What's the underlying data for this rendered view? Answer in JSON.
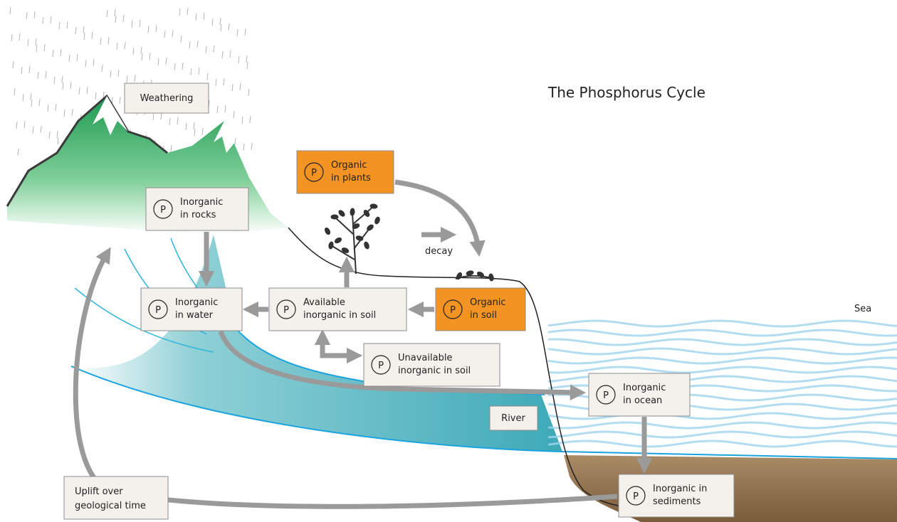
{
  "title": "The Phosphorus Cycle",
  "labels": {
    "weathering": "Weathering",
    "decay": "decay",
    "river": "River",
    "sea": "Sea",
    "uplift": [
      "Uplift over",
      "geological time"
    ]
  },
  "nodes": [
    {
      "symbol": "P",
      "lines": [
        "Inorganic",
        "in rocks"
      ]
    },
    {
      "symbol": "P",
      "lines": [
        "Organic",
        "in plants"
      ]
    },
    {
      "symbol": "P",
      "lines": [
        "Inorganic",
        "in water"
      ]
    },
    {
      "symbol": "P",
      "lines": [
        "Available",
        "inorganic in soil"
      ]
    },
    {
      "symbol": "P",
      "lines": [
        "Organic",
        "in soil"
      ]
    },
    {
      "symbol": "P",
      "lines": [
        "Unavailable",
        "inorganic in soil"
      ]
    },
    {
      "symbol": "P",
      "lines": [
        "Inorganic",
        "in ocean"
      ]
    },
    {
      "symbol": "P",
      "lines": [
        "Inorganic in",
        "sediments"
      ]
    }
  ]
}
